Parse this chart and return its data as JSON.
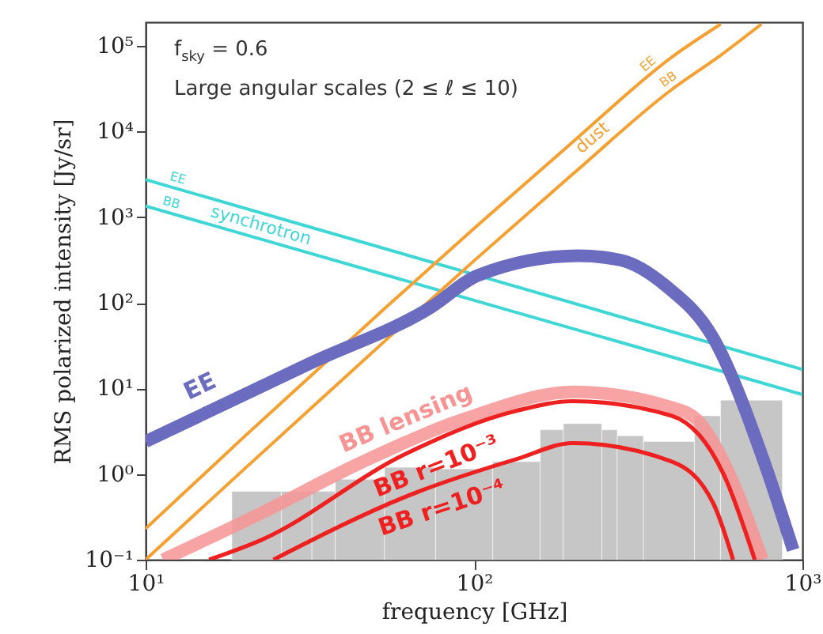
{
  "chart_data": {
    "type": "line",
    "xlabel": "frequency [GHz]",
    "ylabel": "RMS polarized intensity [Jy/sr]",
    "log": "xy",
    "grid": false,
    "xlim": [
      10,
      1000
    ],
    "ylim": [
      0.1,
      190000
    ],
    "xticks": [
      {
        "value": 10,
        "label": "10¹"
      },
      {
        "value": 100,
        "label": "10²"
      },
      {
        "value": 1000,
        "label": "10³"
      }
    ],
    "yticks": [
      {
        "value": 0.1,
        "label": "10⁻¹"
      },
      {
        "value": 1,
        "label": "10⁰"
      },
      {
        "value": 10,
        "label": "10¹"
      },
      {
        "value": 100,
        "label": "10²"
      },
      {
        "value": 1000,
        "label": "10³"
      },
      {
        "value": 10000,
        "label": "10⁴"
      },
      {
        "value": 100000,
        "label": "10⁵"
      }
    ],
    "series": [
      {
        "type": "histogram",
        "color": "#bdbdbd",
        "bins": [
          18.3,
          25.9,
          32.1,
          37.8,
          53.4,
          76.4,
          114,
          159,
          187,
          245,
          273,
          328,
          469,
          563,
          869
        ],
        "values": [
          0.63,
          0.63,
          0.63,
          0.87,
          1.2,
          1.15,
          1.4,
          3.3,
          3.9,
          3.3,
          2.8,
          2.4,
          4.8,
          7.3
        ]
      },
      {
        "name": "EE",
        "color": "#3fd6d6",
        "x": [
          10,
          100,
          1000
        ],
        "values": [
          2750,
          215,
          16.7
        ]
      },
      {
        "name": "BB",
        "color": "#3fd6d6",
        "x": [
          10,
          100,
          1000
        ],
        "values": [
          1350,
          107,
          8.5
        ]
      },
      {
        "name": "EE",
        "color": "#f5a030",
        "x": [
          10,
          20,
          54,
          100,
          200,
          400,
          564
        ],
        "values": [
          0.23,
          2.75,
          89,
          740,
          7600,
          74000,
          180000
        ]
      },
      {
        "name": "BB",
        "color": "#f5a030",
        "x": [
          10,
          20,
          54,
          100,
          200,
          400,
          564,
          750
        ],
        "values": [
          0.1,
          1.15,
          37,
          310,
          3200,
          31000,
          78000,
          180000
        ]
      },
      {
        "name": "EE",
        "color": "#6b6bbf",
        "x": [
          10,
          32,
          74,
          103,
          208,
          279,
          386,
          535,
          764,
          937
        ],
        "values": [
          2.4,
          20,
          89,
          210,
          355,
          316,
          155,
          39,
          1.4,
          0.13
        ]
      },
      {
        "name": "BB lensing",
        "color": "#f89494",
        "x": [
          11.3,
          22.5,
          46,
          95,
          202,
          400,
          478,
          615,
          755
        ],
        "values": [
          0.1,
          0.35,
          1.4,
          4.5,
          9.1,
          6.0,
          4.3,
          0.8,
          0.1
        ]
      },
      {
        "name": "BB r=10⁻³",
        "color": "#ee2020",
        "x": [
          15.6,
          22.5,
          61.5,
          135,
          200,
          400,
          575,
          716
        ],
        "values": [
          0.1,
          0.17,
          1.7,
          5.5,
          7.1,
          4.8,
          1.0,
          0.1
        ]
      },
      {
        "name": "BB r=10⁻⁴",
        "color": "#ee2020",
        "x": [
          24.5,
          66,
          135,
          200,
          400,
          536,
          615
        ],
        "values": [
          0.1,
          0.6,
          1.5,
          2.3,
          1.4,
          0.45,
          0.1
        ]
      }
    ],
    "annotations": [
      "f$_{sky}$ = 0.6",
      "Large angular scales (2 ≤ ℓ ≤ 10)",
      "synchrotron",
      "dust"
    ]
  }
}
